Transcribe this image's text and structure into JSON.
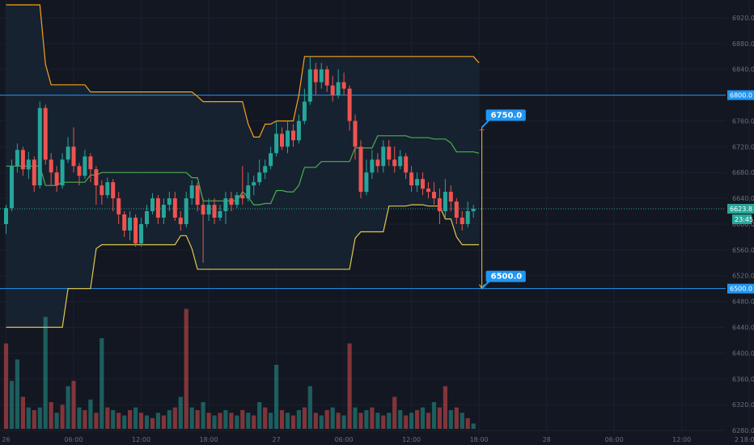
{
  "chart_data": {
    "type": "candlestick",
    "ylim": [
      6270,
      6940
    ],
    "y_ticks": [
      "6920.0",
      "6880.0",
      "6840.0",
      "6800.0",
      "6760.0",
      "6720.0",
      "6680.0",
      "6640.0",
      "6600.0",
      "6560.0",
      "6520.0",
      "6480.0",
      "6440.0",
      "6400.0",
      "6360.0",
      "6320.0",
      "6280.0"
    ],
    "x_ticks": [
      "26",
      "06:00",
      "12:00",
      "18:00",
      "27",
      "06:00",
      "12:00",
      "18:00",
      "28",
      "06:00",
      "12:00",
      "18:00"
    ],
    "x_label_bars": [
      0,
      12,
      24,
      36,
      48,
      60,
      72,
      84,
      96,
      108,
      120,
      132
    ],
    "bars_count": 144,
    "levels": [
      {
        "value": 6800.0,
        "label": "6800.0"
      },
      {
        "value": 6500.0,
        "label": "6500.0"
      }
    ],
    "last_price": {
      "value": 6623.8,
      "label": "6623.8",
      "countdown": "23:45"
    },
    "projection": {
      "start_bar": 84.5,
      "start_value": 6623.8,
      "target_high": {
        "value": 6750.0,
        "label": "6750.0"
      },
      "target_low": {
        "value": 6500.0,
        "label": "6500.0"
      }
    },
    "colors": {
      "background": "#131722",
      "up": "#26a69a",
      "down": "#ef5350",
      "outer_band": "#f7a21b",
      "middle_band": "#4caf50",
      "lower_band": "#e2c84a",
      "level_line": "#2196f3",
      "label_bg": "#2196f3",
      "last_price_bg": "#26a69a",
      "fill": "#172433"
    },
    "upper_band": [
      [
        0,
        6940
      ],
      [
        6,
        6940
      ],
      [
        7,
        6848
      ],
      [
        8,
        6816
      ],
      [
        14,
        6816
      ],
      [
        15,
        6805
      ],
      [
        32,
        6805
      ],
      [
        34,
        6798
      ],
      [
        35,
        6790
      ],
      [
        41,
        6790
      ],
      [
        43,
        6755
      ],
      [
        44,
        6735
      ],
      [
        45,
        6735
      ],
      [
        46,
        6755
      ],
      [
        48,
        6760
      ],
      [
        51,
        6760
      ],
      [
        52,
        6800
      ],
      [
        53,
        6860
      ],
      [
        83,
        6860
      ],
      [
        84,
        6850
      ]
    ],
    "lower_band": [
      [
        0,
        6440
      ],
      [
        10,
        6440
      ],
      [
        11,
        6500
      ],
      [
        13,
        6500
      ],
      [
        16,
        6562
      ],
      [
        17,
        6568
      ],
      [
        29,
        6568
      ],
      [
        31,
        6582
      ],
      [
        33,
        6562
      ],
      [
        34,
        6530
      ],
      [
        61,
        6530
      ],
      [
        62,
        6578
      ],
      [
        63,
        6588
      ],
      [
        68,
        6628
      ],
      [
        72,
        6630
      ],
      [
        75,
        6628
      ],
      [
        78,
        6608
      ],
      [
        80,
        6580
      ],
      [
        81,
        6568
      ],
      [
        84,
        6568
      ]
    ],
    "middle_band": [
      [
        0,
        6690
      ],
      [
        6,
        6690
      ],
      [
        7,
        6660
      ],
      [
        10,
        6665
      ],
      [
        15,
        6676
      ],
      [
        16,
        6676
      ],
      [
        17,
        6680
      ],
      [
        30,
        6680
      ],
      [
        33,
        6672
      ],
      [
        35,
        6636
      ],
      [
        40,
        6636
      ],
      [
        42,
        6650
      ],
      [
        43,
        6642
      ],
      [
        44,
        6630
      ],
      [
        46,
        6632
      ],
      [
        48,
        6652
      ],
      [
        50,
        6650
      ],
      [
        52,
        6660
      ],
      [
        53,
        6688
      ],
      [
        56,
        6697
      ],
      [
        60,
        6697
      ],
      [
        62,
        6718
      ],
      [
        64,
        6718
      ],
      [
        66,
        6737
      ],
      [
        72,
        6734
      ],
      [
        76,
        6732
      ],
      [
        79,
        6726
      ],
      [
        80,
        6712
      ],
      [
        84,
        6710
      ]
    ],
    "candles": [
      [
        6600,
        6625,
        6585,
        6630
      ],
      [
        6625,
        6690,
        6620,
        6700
      ],
      [
        6690,
        6715,
        6680,
        6725
      ],
      [
        6715,
        6685,
        6675,
        6720
      ],
      [
        6685,
        6700,
        6670,
        6712
      ],
      [
        6700,
        6660,
        6650,
        6705
      ],
      [
        6660,
        6780,
        6655,
        6790
      ],
      [
        6780,
        6700,
        6692,
        6785
      ],
      [
        6700,
        6680,
        6660,
        6710
      ],
      [
        6680,
        6660,
        6650,
        6690
      ],
      [
        6660,
        6700,
        6655,
        6710
      ],
      [
        6700,
        6720,
        6695,
        6735
      ],
      [
        6720,
        6690,
        6680,
        6750
      ],
      [
        6690,
        6675,
        6660,
        6695
      ],
      [
        6675,
        6705,
        6670,
        6715
      ],
      [
        6705,
        6685,
        6665,
        6710
      ],
      [
        6685,
        6660,
        6630,
        6690
      ],
      [
        6660,
        6645,
        6630,
        6668
      ],
      [
        6645,
        6665,
        6640,
        6672
      ],
      [
        6665,
        6640,
        6620,
        6670
      ],
      [
        6640,
        6615,
        6600,
        6650
      ],
      [
        6615,
        6590,
        6580,
        6620
      ],
      [
        6590,
        6610,
        6575,
        6620
      ],
      [
        6610,
        6570,
        6565,
        6615
      ],
      [
        6570,
        6600,
        6565,
        6610
      ],
      [
        6600,
        6620,
        6595,
        6630
      ],
      [
        6620,
        6640,
        6615,
        6648
      ],
      [
        6640,
        6610,
        6600,
        6645
      ],
      [
        6610,
        6630,
        6600,
        6640
      ],
      [
        6630,
        6640,
        6620,
        6650
      ],
      [
        6640,
        6610,
        6605,
        6650
      ],
      [
        6610,
        6600,
        6590,
        6620
      ],
      [
        6600,
        6640,
        6595,
        6650
      ],
      [
        6640,
        6660,
        6630,
        6668
      ],
      [
        6660,
        6630,
        6620,
        6665
      ],
      [
        6630,
        6615,
        6540,
        6640
      ],
      [
        6615,
        6630,
        6605,
        6640
      ],
      [
        6630,
        6610,
        6600,
        6640
      ],
      [
        6610,
        6620,
        6605,
        6630
      ],
      [
        6620,
        6640,
        6600,
        6650
      ],
      [
        6640,
        6630,
        6620,
        6650
      ],
      [
        6630,
        6645,
        6625,
        6650
      ],
      [
        6645,
        6640,
        6630,
        6690
      ],
      [
        6640,
        6660,
        6635,
        6680
      ],
      [
        6660,
        6665,
        6645,
        6675
      ],
      [
        6665,
        6680,
        6660,
        6700
      ],
      [
        6680,
        6690,
        6670,
        6700
      ],
      [
        6690,
        6710,
        6685,
        6720
      ],
      [
        6710,
        6740,
        6705,
        6760
      ],
      [
        6740,
        6720,
        6715,
        6750
      ],
      [
        6720,
        6745,
        6710,
        6760
      ],
      [
        6745,
        6730,
        6720,
        6755
      ],
      [
        6730,
        6760,
        6725,
        6770
      ],
      [
        6760,
        6790,
        6755,
        6810
      ],
      [
        6790,
        6840,
        6785,
        6860
      ],
      [
        6840,
        6820,
        6800,
        6850
      ],
      [
        6820,
        6840,
        6810,
        6850
      ],
      [
        6840,
        6815,
        6805,
        6845
      ],
      [
        6815,
        6800,
        6790,
        6830
      ],
      [
        6800,
        6820,
        6795,
        6840
      ],
      [
        6820,
        6810,
        6800,
        6835
      ],
      [
        6810,
        6760,
        6745,
        6815
      ],
      [
        6760,
        6720,
        6700,
        6770
      ],
      [
        6720,
        6650,
        6640,
        6730
      ],
      [
        6650,
        6680,
        6645,
        6700
      ],
      [
        6680,
        6700,
        6670,
        6715
      ],
      [
        6700,
        6690,
        6680,
        6710
      ],
      [
        6690,
        6720,
        6680,
        6730
      ],
      [
        6720,
        6700,
        6690,
        6730
      ],
      [
        6700,
        6690,
        6680,
        6720
      ],
      [
        6690,
        6705,
        6685,
        6715
      ],
      [
        6705,
        6680,
        6670,
        6710
      ],
      [
        6680,
        6660,
        6650,
        6690
      ],
      [
        6660,
        6670,
        6650,
        6680
      ],
      [
        6670,
        6655,
        6645,
        6680
      ],
      [
        6655,
        6650,
        6640,
        6665
      ],
      [
        6650,
        6640,
        6630,
        6665
      ],
      [
        6640,
        6620,
        6600,
        6655
      ],
      [
        6620,
        6650,
        6610,
        6670
      ],
      [
        6650,
        6635,
        6620,
        6660
      ],
      [
        6635,
        6610,
        6600,
        6640
      ],
      [
        6610,
        6600,
        6590,
        6620
      ],
      [
        6600,
        6620,
        6595,
        6635
      ],
      [
        6620,
        6623.8,
        6610,
        6630
      ]
    ],
    "volume_max": 220,
    "volumes": [
      [
        160,
        "down"
      ],
      [
        90,
        "up"
      ],
      [
        130,
        "up"
      ],
      [
        60,
        "down"
      ],
      [
        40,
        "up"
      ],
      [
        35,
        "down"
      ],
      [
        40,
        "up"
      ],
      [
        210,
        "up"
      ],
      [
        50,
        "down"
      ],
      [
        30,
        "up"
      ],
      [
        45,
        "down"
      ],
      [
        80,
        "up"
      ],
      [
        90,
        "down"
      ],
      [
        40,
        "up"
      ],
      [
        35,
        "down"
      ],
      [
        55,
        "up"
      ],
      [
        30,
        "down"
      ],
      [
        170,
        "up"
      ],
      [
        40,
        "down"
      ],
      [
        35,
        "up"
      ],
      [
        30,
        "down"
      ],
      [
        25,
        "up"
      ],
      [
        35,
        "down"
      ],
      [
        40,
        "up"
      ],
      [
        30,
        "down"
      ],
      [
        25,
        "up"
      ],
      [
        20,
        "down"
      ],
      [
        30,
        "up"
      ],
      [
        25,
        "down"
      ],
      [
        35,
        "up"
      ],
      [
        40,
        "down"
      ],
      [
        60,
        "up"
      ],
      [
        225,
        "down"
      ],
      [
        40,
        "up"
      ],
      [
        35,
        "down"
      ],
      [
        50,
        "up"
      ],
      [
        30,
        "down"
      ],
      [
        25,
        "up"
      ],
      [
        30,
        "down"
      ],
      [
        35,
        "up"
      ],
      [
        30,
        "down"
      ],
      [
        25,
        "up"
      ],
      [
        35,
        "down"
      ],
      [
        30,
        "up"
      ],
      [
        25,
        "down"
      ],
      [
        50,
        "up"
      ],
      [
        40,
        "down"
      ],
      [
        30,
        "up"
      ],
      [
        120,
        "up"
      ],
      [
        35,
        "down"
      ],
      [
        30,
        "up"
      ],
      [
        25,
        "down"
      ],
      [
        35,
        "up"
      ],
      [
        40,
        "down"
      ],
      [
        80,
        "up"
      ],
      [
        30,
        "down"
      ],
      [
        25,
        "up"
      ],
      [
        35,
        "down"
      ],
      [
        40,
        "up"
      ],
      [
        30,
        "down"
      ],
      [
        25,
        "up"
      ],
      [
        160,
        "down"
      ],
      [
        40,
        "up"
      ],
      [
        30,
        "down"
      ],
      [
        35,
        "up"
      ],
      [
        40,
        "down"
      ],
      [
        30,
        "up"
      ],
      [
        25,
        "down"
      ],
      [
        30,
        "up"
      ],
      [
        60,
        "down"
      ],
      [
        35,
        "up"
      ],
      [
        25,
        "down"
      ],
      [
        30,
        "up"
      ],
      [
        35,
        "down"
      ],
      [
        40,
        "up"
      ],
      [
        30,
        "down"
      ],
      [
        50,
        "up"
      ],
      [
        40,
        "down"
      ],
      [
        80,
        "down"
      ],
      [
        35,
        "up"
      ],
      [
        40,
        "down"
      ],
      [
        30,
        "up"
      ],
      [
        20,
        "down"
      ],
      [
        10,
        "up"
      ]
    ]
  }
}
